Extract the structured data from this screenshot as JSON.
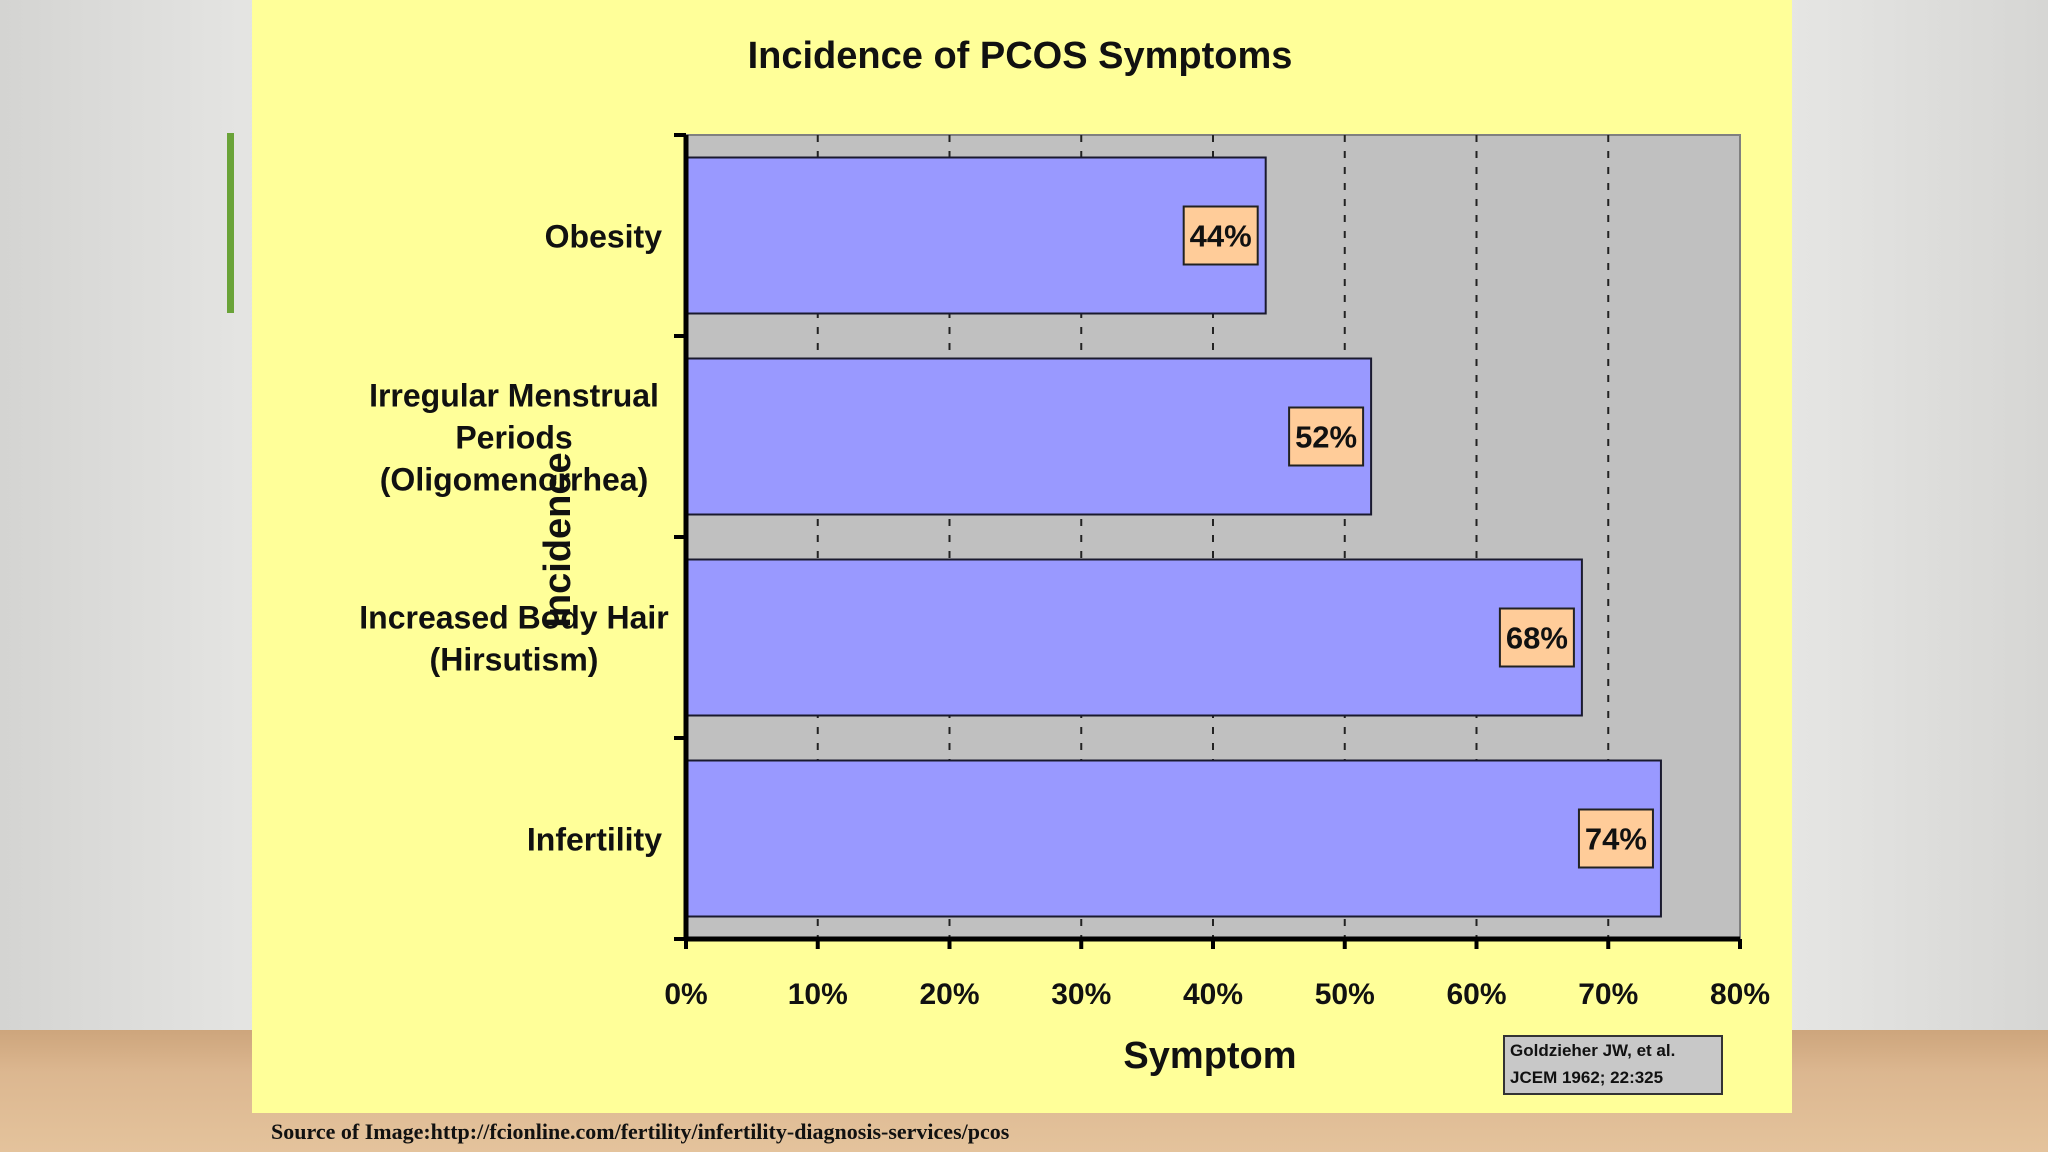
{
  "chart_data": {
    "type": "bar",
    "orientation": "horizontal",
    "title": "Incidence of PCOS Symptoms",
    "xlabel": "Symptom",
    "ylabel": "Incidence",
    "categories": [
      [
        "Obesity"
      ],
      [
        "Irregular Menstrual",
        "Periods",
        "(Oligomenorrhea)"
      ],
      [
        "Increased Body Hair",
        "(Hirsutism)"
      ],
      [
        "Infertility"
      ]
    ],
    "values": [
      44,
      52,
      68,
      74
    ],
    "data_labels": [
      "44%",
      "52%",
      "68%",
      "74%"
    ],
    "xlim": [
      0,
      80
    ],
    "xticks": [
      0,
      10,
      20,
      30,
      40,
      50,
      60,
      70,
      80
    ],
    "xtick_labels": [
      "0%",
      "10%",
      "20%",
      "30%",
      "40%",
      "50%",
      "60%",
      "70%",
      "80%"
    ],
    "grid": "vertical dashed",
    "citation": [
      "Goldzieher JW, et al.",
      "JCEM 1962; 22:325"
    ],
    "colors": {
      "bar": "#9999ff",
      "plot_background": "#c0c0c0",
      "slide_background": "#ffff99",
      "label_box": "#ffcc99"
    }
  },
  "slide": {
    "source": "Source of Image:http://fcionline.com/fertility/infertility-diagnosis-services/pcos"
  }
}
